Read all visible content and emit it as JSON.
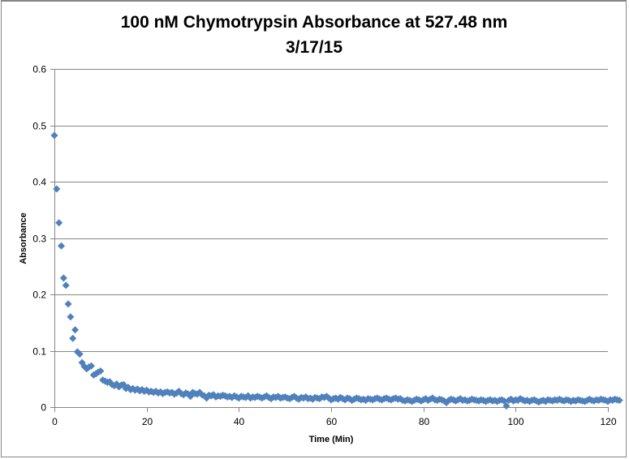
{
  "chart_data": {
    "type": "scatter",
    "title": "100 nM Chymotrypsin Absorbance at 527.48 nm",
    "subtitle": "3/17/15",
    "xlabel": "Time (Min)",
    "ylabel": "Absorbance",
    "xlim": [
      0,
      120
    ],
    "ylim": [
      0,
      0.6
    ],
    "xticks": [
      "0",
      "20",
      "40",
      "60",
      "80",
      "100",
      "120"
    ],
    "xtick_values": [
      0,
      20,
      40,
      60,
      80,
      100,
      120
    ],
    "yticks": [
      "0",
      "0.1",
      "0.2",
      "0.3",
      "0.4",
      "0.5",
      "0.6"
    ],
    "ytick_values": [
      0,
      0.1,
      0.2,
      0.3,
      0.4,
      0.5,
      0.6
    ],
    "grid": "horizontal",
    "legend": "none",
    "marker": "diamond",
    "color": "#4F81BD",
    "series": [
      {
        "name": "Absorbance",
        "x_start": 0,
        "x_step": 0.5,
        "values": [
          0.482,
          0.387,
          0.327,
          0.286,
          0.229,
          0.216,
          0.183,
          0.16,
          0.122,
          0.137,
          0.098,
          0.094,
          0.079,
          0.072,
          0.068,
          0.071,
          0.073,
          0.057,
          0.059,
          0.062,
          0.064,
          0.048,
          0.046,
          0.044,
          0.045,
          0.04,
          0.038,
          0.041,
          0.036,
          0.039,
          0.04,
          0.033,
          0.035,
          0.031,
          0.033,
          0.03,
          0.032,
          0.029,
          0.031,
          0.028,
          0.03,
          0.027,
          0.028,
          0.026,
          0.028,
          0.025,
          0.027,
          0.024,
          0.026,
          0.027,
          0.025,
          0.026,
          0.023,
          0.025,
          0.028,
          0.024,
          0.022,
          0.025,
          0.023,
          0.019,
          0.026,
          0.024,
          0.023,
          0.026,
          0.022,
          0.02,
          0.016,
          0.021,
          0.02,
          0.022,
          0.018,
          0.02,
          0.019,
          0.021,
          0.02,
          0.018,
          0.019,
          0.017,
          0.02,
          0.018,
          0.016,
          0.019,
          0.018,
          0.017,
          0.02,
          0.016,
          0.018,
          0.017,
          0.019,
          0.018,
          0.016,
          0.018,
          0.02,
          0.017,
          0.015,
          0.018,
          0.017,
          0.019,
          0.016,
          0.017,
          0.018,
          0.016,
          0.015,
          0.017,
          0.019,
          0.016,
          0.014,
          0.017,
          0.016,
          0.018,
          0.015,
          0.016,
          0.014,
          0.017,
          0.016,
          0.015,
          0.018,
          0.017,
          0.019,
          0.016,
          0.013,
          0.015,
          0.016,
          0.014,
          0.017,
          0.015,
          0.013,
          0.016,
          0.015,
          0.012,
          0.014,
          0.016,
          0.015,
          0.013,
          0.014,
          0.012,
          0.015,
          0.014,
          0.013,
          0.015,
          0.016,
          0.014,
          0.013,
          0.015,
          0.016,
          0.014,
          0.013,
          0.015,
          0.016,
          0.014,
          0.015,
          0.012,
          0.011,
          0.013,
          0.012,
          0.01,
          0.012,
          0.014,
          0.013,
          0.011,
          0.013,
          0.015,
          0.012,
          0.014,
          0.016,
          0.013,
          0.012,
          0.014,
          0.013,
          0.011,
          0.008,
          0.012,
          0.014,
          0.013,
          0.011,
          0.013,
          0.015,
          0.012,
          0.013,
          0.011,
          0.012,
          0.014,
          0.013,
          0.012,
          0.011,
          0.013,
          0.012,
          0.01,
          0.012,
          0.013,
          0.011,
          0.012,
          0.01,
          0.012,
          0.013,
          0.011,
          0.002,
          0.012,
          0.014,
          0.011,
          0.013,
          0.012,
          0.015,
          0.013,
          0.011,
          0.012,
          0.01,
          0.012,
          0.013,
          0.011,
          0.009,
          0.011,
          0.012,
          0.01,
          0.013,
          0.012,
          0.011,
          0.013,
          0.012,
          0.014,
          0.012,
          0.011,
          0.013,
          0.012,
          0.01,
          0.012,
          0.011,
          0.013,
          0.012,
          0.011,
          0.01,
          0.012,
          0.014,
          0.012,
          0.011,
          0.013,
          0.012,
          0.014,
          0.013,
          0.012,
          0.01,
          0.013,
          0.012,
          0.014,
          0.013,
          0.012
        ]
      }
    ]
  }
}
